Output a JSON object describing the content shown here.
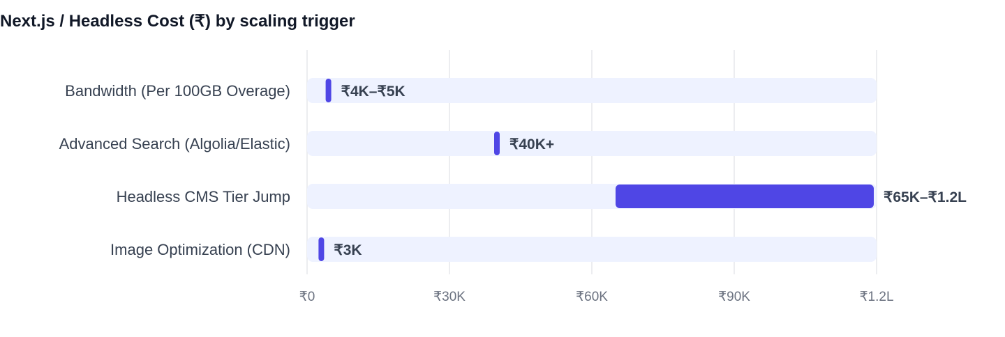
{
  "chart_data": {
    "type": "bar",
    "orientation": "horizontal",
    "title": "Next.js / Headless Cost (₹) by scaling trigger",
    "xlabel": "",
    "ylabel": "",
    "xlim": [
      0,
      120000
    ],
    "grid": true,
    "legend": "none",
    "ticks": [
      {
        "value": 0,
        "label": "₹0"
      },
      {
        "value": 30000,
        "label": "₹30K"
      },
      {
        "value": 60000,
        "label": "₹60K"
      },
      {
        "value": 90000,
        "label": "₹90K"
      },
      {
        "value": 120000,
        "label": "₹1.2L"
      }
    ],
    "categories": [
      "Bandwidth (Per 100GB Overage)",
      "Advanced Search (Algolia/Elastic)",
      "Headless CMS Tier Jump",
      "Image Optimization (CDN)"
    ],
    "ranges": [
      {
        "low": 4000,
        "high": 5000,
        "label": "₹4K–₹5K"
      },
      {
        "low": 40000,
        "high": 40000,
        "label": "₹40K+"
      },
      {
        "low": 65000,
        "high": 120000,
        "label": "₹65K–₹1.2L"
      },
      {
        "low": 3000,
        "high": 3000,
        "label": "₹3K"
      }
    ],
    "colors": {
      "bar": "#4f46e5",
      "track": "#eef2ff",
      "grid": "#e5e7eb"
    }
  }
}
